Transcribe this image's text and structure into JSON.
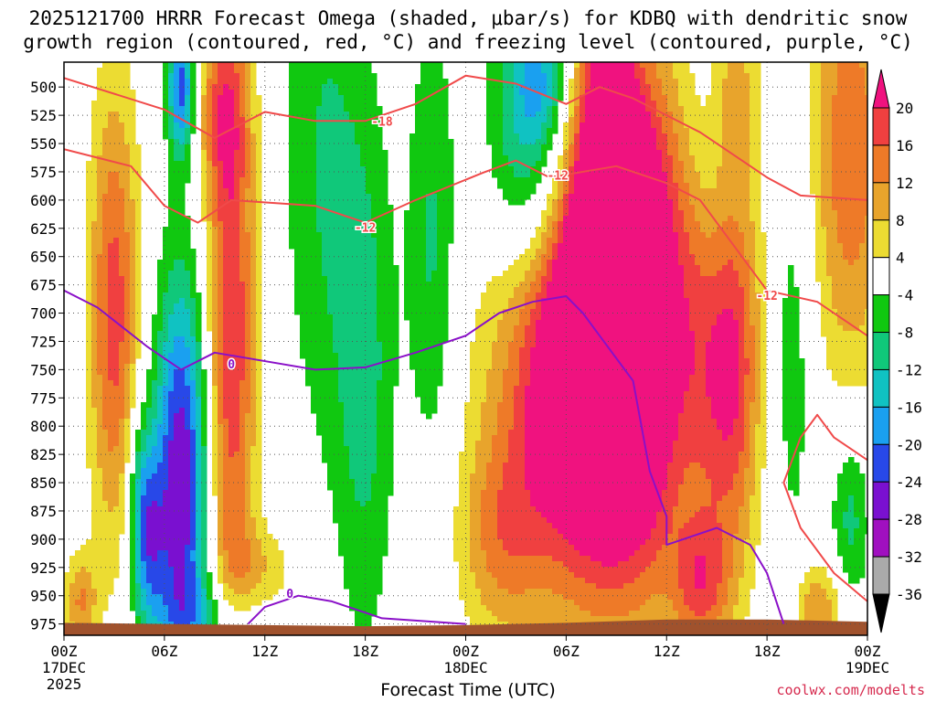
{
  "title_line1": "2025121700 HRRR Forecast Omega (shaded, μbar/s) for KDBQ with dendritic snow",
  "title_line2": "growth region (contoured, red, °C) and freezing level (contoured, purple, °C)",
  "xaxis_title": "Forecast Time (UTC)",
  "credit": "coolwx.com/modelts",
  "colors": {
    "dgz_contour": "#f04a4a",
    "freezing_contour": "#8a10c8",
    "terrain": "#a0522d",
    "grid": "#555555"
  },
  "chart_data": {
    "type": "heatmap",
    "y_levels_hPa": [
      500,
      525,
      550,
      575,
      600,
      625,
      650,
      675,
      700,
      725,
      750,
      775,
      800,
      825,
      850,
      875,
      900,
      925,
      950,
      975
    ],
    "y_range": [
      478,
      985
    ],
    "x_range_hours": [
      0,
      48
    ],
    "x_ticks": [
      {
        "h": 0,
        "label": "00Z",
        "sub1": "17DEC",
        "sub2": "2025"
      },
      {
        "h": 6,
        "label": "06Z"
      },
      {
        "h": 12,
        "label": "12Z"
      },
      {
        "h": 18,
        "label": "18Z"
      },
      {
        "h": 24,
        "label": "00Z",
        "sub1": "18DEC"
      },
      {
        "h": 30,
        "label": "06Z"
      },
      {
        "h": 36,
        "label": "12Z"
      },
      {
        "h": 42,
        "label": "18Z"
      },
      {
        "h": 48,
        "label": "00Z",
        "sub1": "19DEC"
      }
    ],
    "colorbar": {
      "labels": [
        "20",
        "16",
        "12",
        "8",
        "4",
        "-4",
        "-8",
        "-12",
        "-16",
        "-20",
        "-24",
        "-28",
        "-32",
        "-36"
      ],
      "bins": [
        {
          "lo": 20,
          "hi": 99,
          "color": "#f0127f"
        },
        {
          "lo": 16,
          "hi": 20,
          "color": "#f04040"
        },
        {
          "lo": 12,
          "hi": 16,
          "color": "#ee7a28"
        },
        {
          "lo": 8,
          "hi": 12,
          "color": "#e8a42c"
        },
        {
          "lo": 4,
          "hi": 8,
          "color": "#ecdc32"
        },
        {
          "lo": -4,
          "hi": 4,
          "color": "#ffffff"
        },
        {
          "lo": -8,
          "hi": -4,
          "color": "#10c810"
        },
        {
          "lo": -12,
          "hi": -8,
          "color": "#10c87a"
        },
        {
          "lo": -16,
          "hi": -12,
          "color": "#10c2c2"
        },
        {
          "lo": -20,
          "hi": -16,
          "color": "#1aa0f0"
        },
        {
          "lo": -24,
          "hi": -20,
          "color": "#2848e8"
        },
        {
          "lo": -28,
          "hi": -24,
          "color": "#7a10d0"
        },
        {
          "lo": -32,
          "hi": -28,
          "color": "#a010c0"
        },
        {
          "lo": -36,
          "hi": -32,
          "color": "#aaaaaa"
        },
        {
          "lo": -99,
          "hi": -36,
          "color": "#000000"
        }
      ]
    },
    "omega_features": [
      {
        "t": 34.0,
        "p": 700,
        "wt": 5.5,
        "wp": 220,
        "a": 34
      },
      {
        "t": 31.0,
        "p": 760,
        "wt": 5.0,
        "wp": 180,
        "a": 20
      },
      {
        "t": 32.5,
        "p": 580,
        "wt": 1.6,
        "wp": 180,
        "a": 20
      },
      {
        "t": 26.0,
        "p": 900,
        "wt": 2.5,
        "wp": 90,
        "a": 10
      },
      {
        "t": 3.0,
        "p": 700,
        "wt": 1.5,
        "wp": 200,
        "a": 18
      },
      {
        "t": 10.0,
        "p": 720,
        "wt": 1.5,
        "wp": 260,
        "a": 20
      },
      {
        "t": 9.5,
        "p": 520,
        "wt": 1.5,
        "wp": 80,
        "a": 12
      },
      {
        "t": 47.0,
        "p": 560,
        "wt": 2.5,
        "wp": 200,
        "a": 15
      },
      {
        "t": 40.0,
        "p": 760,
        "wt": 1.5,
        "wp": 150,
        "a": 12
      },
      {
        "t": 38.0,
        "p": 940,
        "wt": 1.8,
        "wp": 60,
        "a": 14
      },
      {
        "t": 45.0,
        "p": 960,
        "wt": 1.5,
        "wp": 40,
        "a": 12
      },
      {
        "t": 40.0,
        "p": 510,
        "wt": 1.5,
        "wp": 70,
        "a": 8
      },
      {
        "t": 1.0,
        "p": 955,
        "wt": 1.0,
        "wp": 40,
        "a": 12
      },
      {
        "t": 11.5,
        "p": 930,
        "wt": 2.5,
        "wp": 40,
        "a": 8
      },
      {
        "t": 4.5,
        "p": 840,
        "wt": 0.8,
        "wp": 80,
        "a": -6
      },
      {
        "t": 7.0,
        "p": 850,
        "wt": 1.6,
        "wp": 180,
        "a": -28
      },
      {
        "t": 5.0,
        "p": 900,
        "wt": 1.0,
        "wp": 80,
        "a": -18
      },
      {
        "t": 7.0,
        "p": 500,
        "wt": 0.8,
        "wp": 60,
        "a": -22
      },
      {
        "t": 15.5,
        "p": 560,
        "wt": 2.5,
        "wp": 260,
        "a": -8
      },
      {
        "t": 18.0,
        "p": 760,
        "wt": 1.8,
        "wp": 240,
        "a": -9
      },
      {
        "t": 22.0,
        "p": 640,
        "wt": 1.5,
        "wp": 200,
        "a": -9
      },
      {
        "t": 28.0,
        "p": 550,
        "wt": 2.6,
        "wp": 140,
        "a": -20
      },
      {
        "t": 28.5,
        "p": 495,
        "wt": 1.5,
        "wp": 50,
        "a": -8
      },
      {
        "t": 38.5,
        "p": 560,
        "wt": 1.6,
        "wp": 140,
        "a": -8
      },
      {
        "t": 36.5,
        "p": 720,
        "wt": 1.5,
        "wp": 220,
        "a": -8
      },
      {
        "t": 43.5,
        "p": 720,
        "wt": 1.5,
        "wp": 220,
        "a": -8
      },
      {
        "t": 47.0,
        "p": 880,
        "wt": 1.2,
        "wp": 80,
        "a": -10
      },
      {
        "t": 9.0,
        "p": 965,
        "wt": 3.0,
        "wp": 40,
        "a": -8
      }
    ],
    "dgz_contours": [
      {
        "label": "-18",
        "label_at": [
          19.0,
          530
        ],
        "points": [
          [
            0,
            492
          ],
          [
            6,
            520
          ],
          [
            9,
            545
          ],
          [
            12,
            522
          ],
          [
            15,
            530
          ],
          [
            18,
            530
          ],
          [
            21,
            515
          ],
          [
            24,
            490
          ],
          [
            27,
            497
          ],
          [
            30,
            515
          ],
          [
            32,
            500
          ],
          [
            34,
            510
          ],
          [
            38,
            540
          ],
          [
            42,
            580
          ],
          [
            44,
            596
          ],
          [
            48,
            600
          ]
        ]
      },
      {
        "label": "-12",
        "label_at": [
          18.0,
          624
        ],
        "points": [
          [
            0,
            555
          ],
          [
            4,
            570
          ],
          [
            6,
            605
          ],
          [
            8,
            620
          ],
          [
            10,
            600
          ],
          [
            15,
            605
          ],
          [
            18,
            620
          ],
          [
            21,
            600
          ],
          [
            25,
            576
          ],
          [
            27,
            565
          ],
          [
            29,
            580
          ],
          [
            33,
            570
          ],
          [
            36,
            585
          ],
          [
            38,
            600
          ],
          [
            40,
            640
          ],
          [
            42,
            680
          ],
          [
            45,
            690
          ],
          [
            48,
            720
          ]
        ]
      },
      {
        "label": "-12",
        "label_at": [
          29.5,
          578
        ],
        "points": []
      },
      {
        "label": "-12",
        "label_at": [
          42.0,
          684
        ],
        "points": []
      },
      {
        "label": "",
        "label_at": null,
        "points": [
          [
            48,
            830
          ],
          [
            46,
            810
          ],
          [
            45,
            790
          ],
          [
            44,
            810
          ],
          [
            43,
            850
          ],
          [
            44,
            890
          ],
          [
            46,
            930
          ],
          [
            48,
            955
          ]
        ]
      }
    ],
    "freezing_contours": [
      {
        "label": "0",
        "label_at": [
          10.0,
          745
        ],
        "points": [
          [
            0,
            680
          ],
          [
            2,
            695
          ],
          [
            5,
            730
          ],
          [
            7,
            750
          ],
          [
            9,
            735
          ],
          [
            13,
            745
          ],
          [
            15,
            750
          ],
          [
            18,
            748
          ],
          [
            21,
            735
          ],
          [
            24,
            720
          ],
          [
            26,
            700
          ],
          [
            28,
            690
          ],
          [
            30,
            685
          ],
          [
            31,
            700
          ],
          [
            32,
            720
          ],
          [
            33,
            740
          ],
          [
            34,
            760
          ],
          [
            35,
            840
          ],
          [
            36,
            880
          ],
          [
            36,
            905
          ],
          [
            37,
            900
          ],
          [
            39,
            890
          ],
          [
            41,
            905
          ],
          [
            42,
            930
          ],
          [
            43,
            975
          ]
        ]
      },
      {
        "label": "0",
        "label_at": [
          13.5,
          948
        ],
        "points": [
          [
            11,
            975
          ],
          [
            12,
            960
          ],
          [
            14,
            950
          ],
          [
            16,
            955
          ],
          [
            19,
            970
          ],
          [
            21,
            972
          ],
          [
            24,
            975
          ]
        ]
      }
    ],
    "terrain_surface_hPa": [
      {
        "h": 0,
        "p": 974
      },
      {
        "h": 6,
        "p": 975
      },
      {
        "h": 12,
        "p": 976
      },
      {
        "h": 18,
        "p": 977
      },
      {
        "h": 24,
        "p": 976
      },
      {
        "h": 30,
        "p": 974
      },
      {
        "h": 36,
        "p": 971
      },
      {
        "h": 42,
        "p": 971
      },
      {
        "h": 48,
        "p": 973
      }
    ]
  }
}
